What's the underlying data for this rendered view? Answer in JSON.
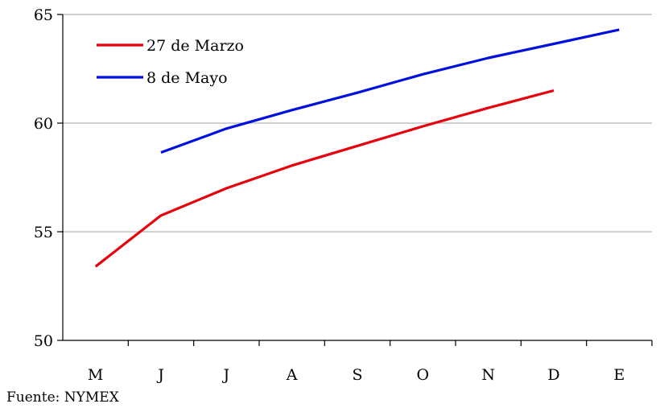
{
  "chart_data": {
    "type": "line",
    "categories": [
      "M",
      "J",
      "J",
      "A",
      "S",
      "O",
      "N",
      "D",
      "E"
    ],
    "series": [
      {
        "name": "27 de Marzo",
        "color": "#e8000b",
        "values": [
          53.4,
          55.75,
          57.0,
          58.05,
          58.95,
          59.85,
          60.7,
          61.5,
          null
        ]
      },
      {
        "name": "8 de Mayo",
        "color": "#0011dd",
        "values": [
          null,
          58.65,
          59.75,
          60.6,
          61.4,
          62.25,
          63.0,
          63.65,
          64.3
        ]
      }
    ],
    "ylim": [
      50,
      65
    ],
    "yticks": [
      50,
      55,
      60,
      65
    ],
    "grid": true,
    "legend_position": "top-left",
    "title": "",
    "xlabel": "",
    "ylabel": ""
  },
  "source": "Fuente: NYMEX"
}
